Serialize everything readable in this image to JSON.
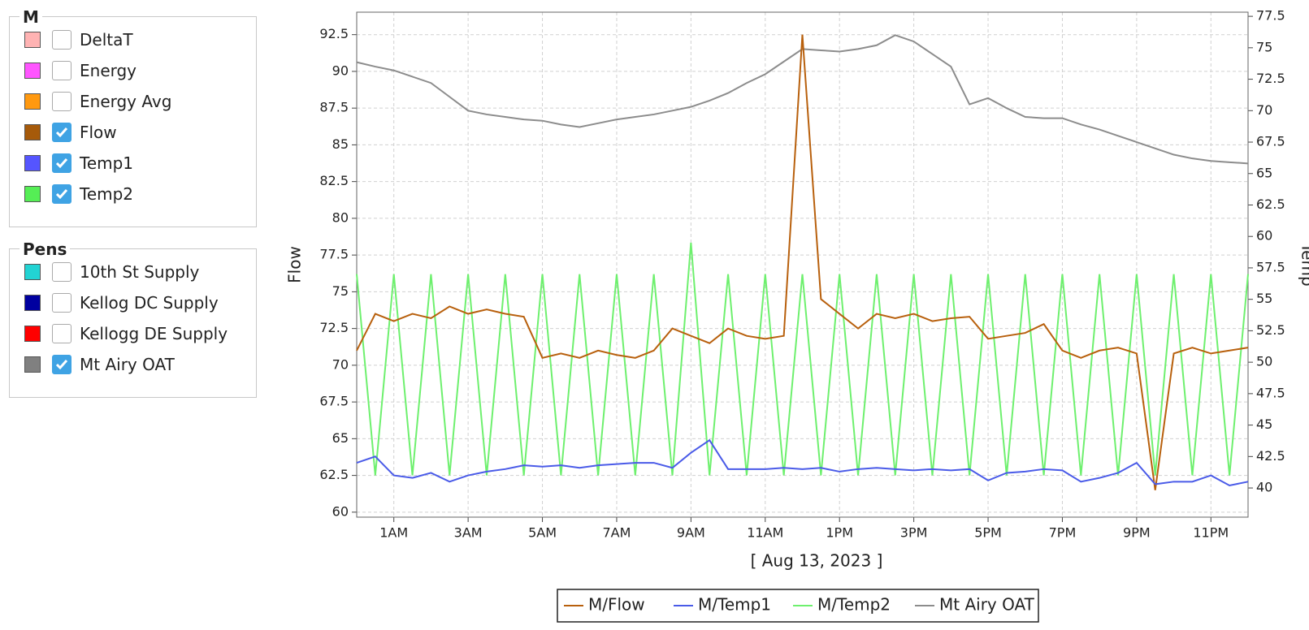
{
  "panels": [
    {
      "title": "M",
      "items": [
        {
          "name": "DeltaT",
          "color": "#ffb3b3",
          "checked": false
        },
        {
          "name": "Energy",
          "color": "#ff55ff",
          "checked": false
        },
        {
          "name": "Energy Avg",
          "color": "#ff9910",
          "checked": false
        },
        {
          "name": "Flow",
          "color": "#a65a0a",
          "checked": true
        },
        {
          "name": "Temp1",
          "color": "#5555ff",
          "checked": true
        },
        {
          "name": "Temp2",
          "color": "#55ee55",
          "checked": true
        }
      ]
    },
    {
      "title": "Pens",
      "items": [
        {
          "name": "10th St Supply",
          "color": "#22d3d3",
          "checked": false
        },
        {
          "name": "Kellog DC Supply",
          "color": "#0000a0",
          "checked": false
        },
        {
          "name": "Kellogg DE Supply",
          "color": "#ff0000",
          "checked": false
        },
        {
          "name": "Mt Airy OAT",
          "color": "#808080",
          "checked": true
        }
      ]
    }
  ],
  "chart_data": {
    "type": "line",
    "xlabel": "[ Aug 13, 2023 ]",
    "ylabel": "Flow",
    "y2label": "Temp",
    "x": [
      0,
      0.5,
      1,
      1.5,
      2,
      2.5,
      3,
      3.5,
      4,
      4.5,
      5,
      5.5,
      6,
      6.5,
      7,
      7.5,
      8,
      8.5,
      9,
      9.5,
      10,
      10.5,
      11,
      11.5,
      12,
      12.5,
      13,
      13.5,
      14,
      14.5,
      15,
      15.5,
      16,
      16.5,
      17,
      17.5,
      18,
      18.5,
      19,
      19.5,
      20,
      20.5,
      21,
      21.5,
      22,
      22.5,
      23,
      23.5,
      24
    ],
    "xlim": [
      0,
      24
    ],
    "xticks": [
      {
        "value": 1,
        "label": "1AM"
      },
      {
        "value": 3,
        "label": "3AM"
      },
      {
        "value": 5,
        "label": "5AM"
      },
      {
        "value": 7,
        "label": "7AM"
      },
      {
        "value": 9,
        "label": "9AM"
      },
      {
        "value": 11,
        "label": "11AM"
      },
      {
        "value": 13,
        "label": "1PM"
      },
      {
        "value": 15,
        "label": "3PM"
      },
      {
        "value": 17,
        "label": "5PM"
      },
      {
        "value": 19,
        "label": "7PM"
      },
      {
        "value": 21,
        "label": "9PM"
      },
      {
        "value": 23,
        "label": "11PM"
      }
    ],
    "ylim": [
      59.66,
      94.03
    ],
    "yticks": [
      60,
      62.5,
      65,
      67.5,
      70,
      72.5,
      75,
      77.5,
      80,
      82.5,
      85,
      87.5,
      90,
      92.5
    ],
    "y2lim": [
      37.68,
      77.83
    ],
    "y2ticks": [
      40,
      42.5,
      45,
      47.5,
      50,
      52.5,
      55,
      57.5,
      60,
      62.5,
      65,
      67.5,
      70,
      72.5,
      75,
      77.5
    ],
    "grid": true,
    "legend": "bottom",
    "series": [
      {
        "name": "M/Flow",
        "color": "#b8600d",
        "values": [
          71,
          73.5,
          73,
          73.5,
          73.2,
          74,
          73.5,
          73.8,
          73.5,
          73.3,
          70.5,
          70.8,
          70.5,
          71,
          70.7,
          70.5,
          71,
          72.5,
          72,
          71.5,
          72.5,
          72,
          71.8,
          72,
          92.5,
          74.5,
          73.5,
          72.5,
          73.5,
          73.2,
          73.5,
          73,
          73.2,
          73.3,
          71.8,
          72,
          72.2,
          72.8,
          71,
          70.5,
          71,
          71.2,
          70.8,
          61.5,
          70.8,
          71.2,
          70.8,
          71,
          71.2
        ]
      },
      {
        "name": "M/Temp1",
        "color": "#4a5be8",
        "axis": "y2",
        "values": [
          42,
          42.5,
          41,
          40.8,
          41.2,
          40.5,
          41,
          41.3,
          41.5,
          41.8,
          41.7,
          41.8,
          41.6,
          41.8,
          41.9,
          42,
          42,
          41.6,
          42.8,
          43.8,
          41.5,
          41.5,
          41.5,
          41.6,
          41.5,
          41.6,
          41.3,
          41.5,
          41.6,
          41.5,
          41.4,
          41.5,
          41.4,
          41.5,
          40.6,
          41.2,
          41.3,
          41.5,
          41.4,
          40.5,
          40.8,
          41.2,
          42,
          40.3,
          40.5,
          40.5,
          41,
          40.2,
          40.5
        ]
      },
      {
        "name": "M/Temp2",
        "color": "#6ef06e",
        "axis": "y2",
        "values": [
          57,
          41,
          57,
          41,
          57,
          41,
          57,
          41,
          57,
          41,
          57,
          41,
          57,
          41,
          57,
          41,
          57,
          41,
          59.5,
          41,
          57,
          41,
          57,
          41,
          57,
          41,
          57,
          41,
          57,
          41,
          57,
          41,
          57,
          41,
          57,
          41,
          57,
          41,
          57,
          41,
          57,
          41,
          57,
          41,
          57,
          41,
          57,
          41,
          57
        ]
      },
      {
        "name": "Mt Airy OAT",
        "color": "#8c8c8c",
        "axis": "y2",
        "values": [
          73.85,
          73.5,
          73.2,
          72.7,
          72.2,
          71.1,
          70,
          69.7,
          69.5,
          69.3,
          69.2,
          68.9,
          68.7,
          69,
          69.3,
          69.5,
          69.7,
          70,
          70.3,
          70.8,
          71.4,
          72.2,
          72.9,
          73.9,
          74.9,
          74.8,
          74.7,
          74.9,
          75.2,
          76,
          75.5,
          74.5,
          73.5,
          70.5,
          71,
          70.2,
          69.5,
          69.4,
          69.4,
          68.9,
          68.5,
          68,
          67.5,
          67,
          66.5,
          66.2,
          66,
          65.9,
          65.8
        ]
      }
    ]
  }
}
